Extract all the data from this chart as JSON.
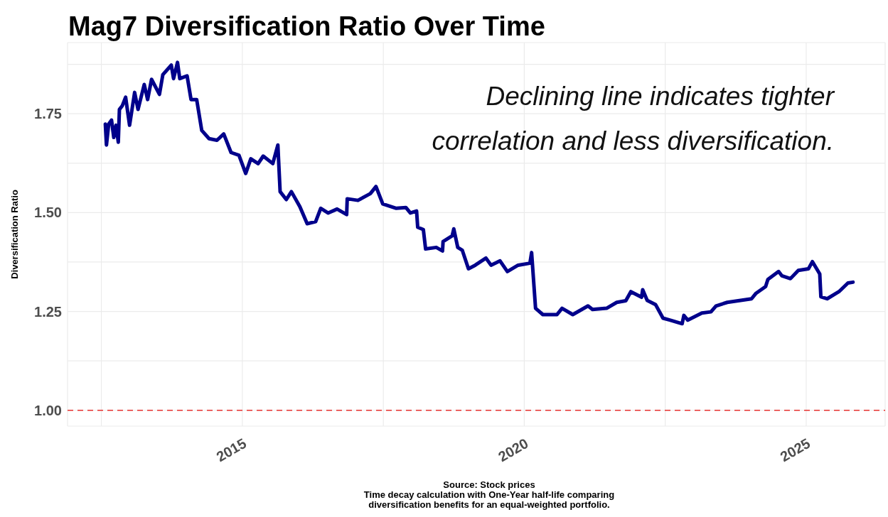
{
  "chart_data": {
    "type": "line",
    "title": "Mag7 Diversification Ratio Over Time",
    "ylabel": "Diversification Ratio",
    "annotations": [
      "Declining line indicates tighter correlation and less diversification.",
      "Source: Stock prices",
      "Time decay calculation with One-Year half-life comparing diversification benefits for an equal-weighted portfolio."
    ],
    "x": [
      2012.57,
      2012.59,
      2012.63,
      2012.68,
      2012.72,
      2012.76,
      2012.8,
      2012.82,
      2012.87,
      2012.93,
      2013.0,
      2013.09,
      2013.15,
      2013.26,
      2013.32,
      2013.39,
      2013.53,
      2013.59,
      2013.74,
      2013.78,
      2013.85,
      2013.89,
      2014.02,
      2014.09,
      2014.19,
      2014.28,
      2014.41,
      2014.55,
      2014.67,
      2014.8,
      2014.94,
      2015.06,
      2015.15,
      2015.28,
      2015.37,
      2015.54,
      2015.63,
      2015.67,
      2015.78,
      2015.87,
      2016.02,
      2016.15,
      2016.3,
      2016.39,
      2016.52,
      2016.68,
      2016.85,
      2016.86,
      2017.05,
      2017.27,
      2017.37,
      2017.49,
      2017.73,
      2017.9,
      2017.98,
      2018.09,
      2018.11,
      2018.21,
      2018.25,
      2018.44,
      2018.55,
      2018.56,
      2018.72,
      2018.75,
      2018.82,
      2018.9,
      2019.01,
      2019.13,
      2019.32,
      2019.41,
      2019.57,
      2019.7,
      2019.89,
      2020.1,
      2020.13,
      2020.2,
      2020.33,
      2020.58,
      2020.67,
      2020.86,
      2021.13,
      2021.21,
      2021.46,
      2021.64,
      2021.8,
      2021.89,
      2022.08,
      2022.1,
      2022.18,
      2022.33,
      2022.46,
      2022.59,
      2022.8,
      2022.83,
      2022.9,
      2023.15,
      2023.31,
      2023.4,
      2023.6,
      2024.03,
      2024.11,
      2024.28,
      2024.32,
      2024.51,
      2024.57,
      2024.72,
      2024.86,
      2025.04,
      2025.11,
      2025.24,
      2025.26,
      2025.37,
      2025.58,
      2025.74,
      2025.83
    ],
    "series": [
      {
        "color": "#00008b",
        "values": [
          1.724,
          1.671,
          1.724,
          1.734,
          1.69,
          1.721,
          1.678,
          1.761,
          1.77,
          1.792,
          1.721,
          1.804,
          1.761,
          1.824,
          1.786,
          1.837,
          1.799,
          1.849,
          1.873,
          1.839,
          1.88,
          1.839,
          1.846,
          1.786,
          1.786,
          1.708,
          1.687,
          1.683,
          1.699,
          1.652,
          1.645,
          1.599,
          1.636,
          1.624,
          1.643,
          1.624,
          1.671,
          1.553,
          1.533,
          1.553,
          1.515,
          1.472,
          1.477,
          1.511,
          1.499,
          1.509,
          1.495,
          1.535,
          1.531,
          1.548,
          1.566,
          1.522,
          1.511,
          1.513,
          1.499,
          1.504,
          1.463,
          1.457,
          1.408,
          1.412,
          1.403,
          1.427,
          1.441,
          1.459,
          1.412,
          1.405,
          1.358,
          1.367,
          1.385,
          1.367,
          1.378,
          1.351,
          1.367,
          1.372,
          1.399,
          1.258,
          1.242,
          1.242,
          1.258,
          1.242,
          1.264,
          1.255,
          1.258,
          1.273,
          1.277,
          1.3,
          1.286,
          1.305,
          1.278,
          1.267,
          1.233,
          1.228,
          1.219,
          1.24,
          1.228,
          1.246,
          1.249,
          1.264,
          1.273,
          1.282,
          1.296,
          1.313,
          1.331,
          1.351,
          1.34,
          1.333,
          1.354,
          1.358,
          1.376,
          1.345,
          1.287,
          1.282,
          1.3,
          1.322,
          1.324
        ]
      }
    ],
    "xlim": [
      2011.9,
      2026.4
    ],
    "xticks": [
      {
        "value": 2012.5,
        "label": null
      },
      2015,
      {
        "value": 2017.5,
        "label": null
      },
      2020,
      {
        "value": 2022.5,
        "label": null
      },
      2025
    ],
    "ylim": [
      0.96,
      1.93
    ],
    "yticks": [
      {
        "value": 1,
        "label": "1.00"
      },
      {
        "value": 1.125,
        "label": null
      },
      {
        "value": 1.25,
        "label": "1.25"
      },
      {
        "value": 1.375,
        "label": null
      },
      {
        "value": 1.5,
        "label": "1.50"
      },
      {
        "value": 1.625,
        "label": null
      },
      {
        "value": 1.75,
        "label": "1.75"
      },
      {
        "value": 1.875,
        "label": null
      }
    ],
    "ref_lines": [
      {
        "axis": "y",
        "value": 1,
        "color": "#e8312f",
        "line_style": "dashed"
      }
    ],
    "grid": true,
    "marker": "none",
    "line_style": "solid"
  }
}
